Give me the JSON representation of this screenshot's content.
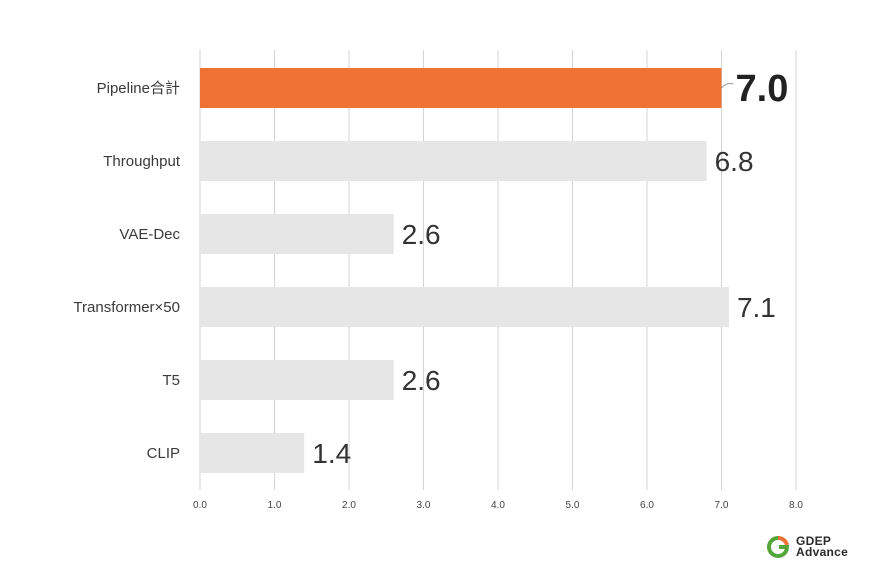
{
  "chart_data": {
    "type": "bar",
    "orientation": "horizontal",
    "categories": [
      "Pipeline合計",
      "Throughput",
      "VAE-Dec",
      "Transformer×50",
      "T5",
      "CLIP"
    ],
    "values": [
      7.0,
      6.8,
      2.6,
      7.1,
      2.6,
      1.4
    ],
    "value_labels": [
      "7.0",
      "6.8",
      "2.6",
      "7.1",
      "2.6",
      "1.4"
    ],
    "highlight_index": 0,
    "xlim": [
      0,
      8
    ],
    "xticks": [
      "0.0",
      "1.0",
      "2.0",
      "3.0",
      "4.0",
      "5.0",
      "6.0",
      "7.0",
      "8.0"
    ],
    "grid": true,
    "colors": {
      "highlight": "#ED7233",
      "normal": "#E6E6E6",
      "grid": "#D4D4D4"
    }
  },
  "logo": {
    "line1": "GDEP",
    "line2": "Advance",
    "colors": [
      "#ED7233",
      "#52A63A"
    ]
  }
}
